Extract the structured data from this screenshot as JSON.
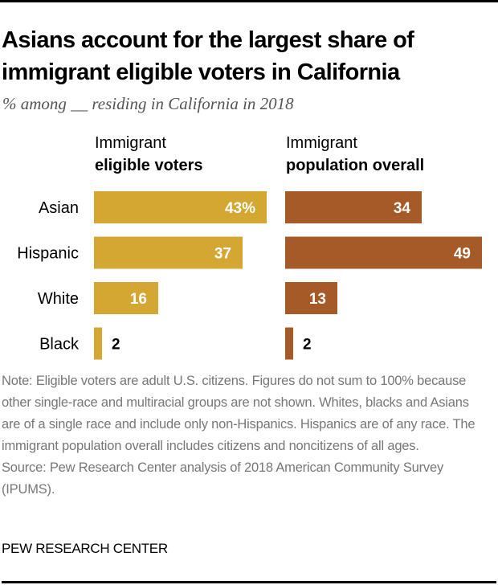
{
  "title": "Asians account for the largest share of immigrant eligible voters in California",
  "subtitle": "% among __ residing in California in 2018",
  "columns": [
    {
      "line1": "Immigrant",
      "line2": "eligible voters"
    },
    {
      "line1": "Immigrant",
      "line2": "population overall"
    }
  ],
  "note": "Note: Eligible voters are adult U.S. citizens. Figures do not sum to 100% because other single-race and multiracial groups are not shown. Whites, blacks and Asians are of a single race and include only non-Hispanics. Hispanics are of any race. The immigrant population overall includes citizens and noncitizens of all ages.",
  "source": "Source: Pew Research Center analysis of 2018 American Community Survey (IPUMS).",
  "brand": "PEW RESEARCH CENTER",
  "colors": {
    "eligible_voters": "#D3A731",
    "population_overall": "#A65A27",
    "label_inside": "#ffffff",
    "label_outside": "#000000"
  },
  "chart_data": {
    "type": "bar",
    "orientation": "horizontal",
    "title": "Asians account for the largest share of immigrant eligible voters in California",
    "subtitle": "% among __ residing in California in 2018",
    "categories": [
      "Asian",
      "Hispanic",
      "White",
      "Black"
    ],
    "series": [
      {
        "name": "Immigrant eligible voters",
        "values": [
          43,
          37,
          16,
          2
        ],
        "labels": [
          "43%",
          "37",
          "16",
          "2"
        ]
      },
      {
        "name": "Immigrant population overall",
        "values": [
          34,
          49,
          13,
          2
        ],
        "labels": [
          "34",
          "49",
          "13",
          "2"
        ]
      }
    ],
    "xlabel": "",
    "ylabel": "",
    "xlim": [
      0,
      50
    ],
    "grid": false,
    "layout": "small-multiples"
  }
}
